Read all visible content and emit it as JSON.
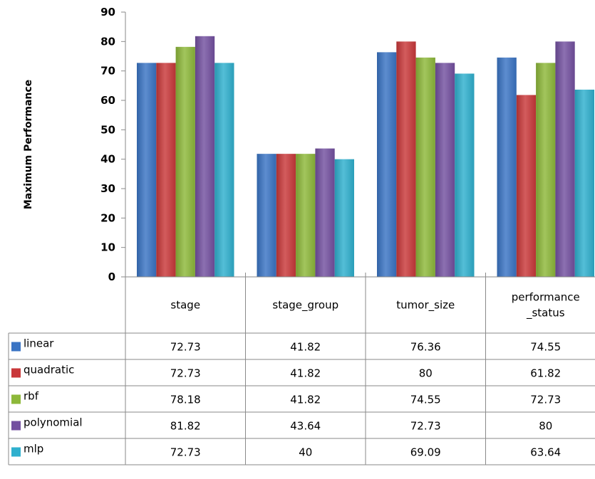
{
  "chart_data": {
    "type": "bar",
    "title": "",
    "xlabel": "",
    "ylabel": "Maximum Performance",
    "ylim": [
      0,
      90
    ],
    "yticks": [
      0,
      10,
      20,
      30,
      40,
      50,
      60,
      70,
      80,
      90
    ],
    "grid": false,
    "legend": "data-table-left",
    "categories": [
      "stage",
      "stage_group",
      "tumor_size",
      "performance\n_status"
    ],
    "series": [
      {
        "name": "linear",
        "color": "#3A74C4",
        "values": [
          72.73,
          41.82,
          76.36,
          74.55
        ],
        "labels": [
          "72.73",
          "41.82",
          "76.36",
          "74.55"
        ]
      },
      {
        "name": "quadratic",
        "color": "#C9383A",
        "values": [
          72.73,
          41.82,
          80,
          61.82
        ],
        "labels": [
          "72.73",
          "41.82",
          "80",
          "61.82"
        ]
      },
      {
        "name": "rbf",
        "color": "#8DB83A",
        "values": [
          78.18,
          41.82,
          74.55,
          72.73
        ],
        "labels": [
          "78.18",
          "41.82",
          "74.55",
          "72.73"
        ]
      },
      {
        "name": "polynomial",
        "color": "#7350A0",
        "values": [
          81.82,
          43.64,
          72.73,
          80
        ],
        "labels": [
          "81.82",
          "43.64",
          "72.73",
          "80"
        ]
      },
      {
        "name": "mlp",
        "color": "#2FB0CE",
        "values": [
          72.73,
          40,
          69.09,
          63.64
        ],
        "labels": [
          "72.73",
          "40",
          "69.09",
          "63.64"
        ]
      }
    ]
  }
}
